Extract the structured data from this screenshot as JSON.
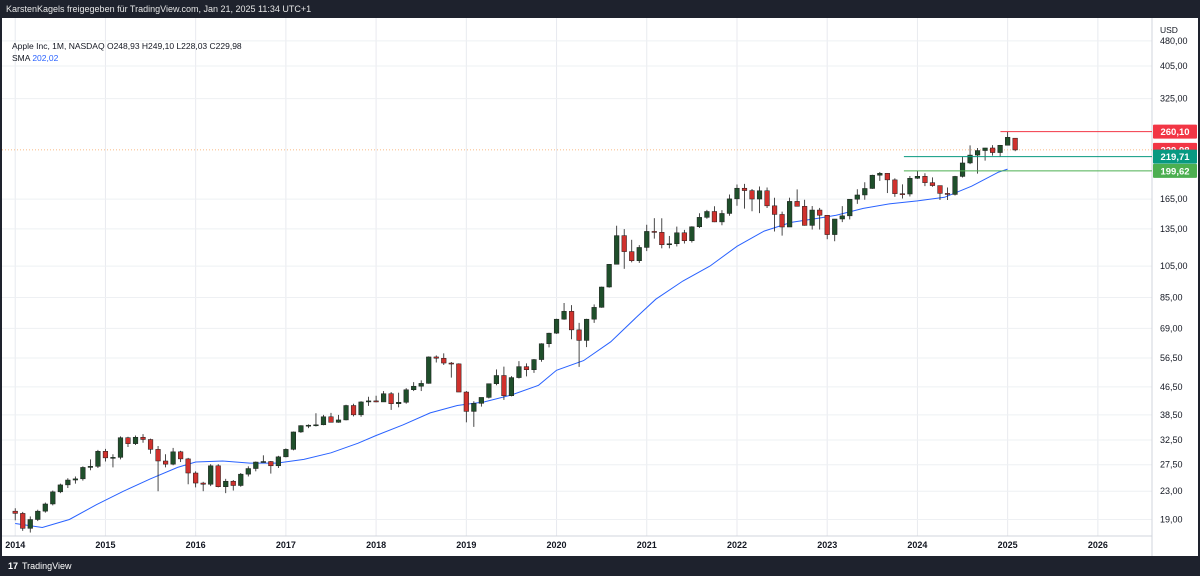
{
  "header": {
    "attribution": "KarstenKagels freigegeben für TradingView.com, Jan 21, 2025 11:34 UTC+1"
  },
  "legend": {
    "symbol_line": "Apple Inc, 1M, NASDAQ  O248,93  H249,10  L228,03  C229,98",
    "sma_label": "SMA",
    "sma_value": "202,02"
  },
  "footer": {
    "logo_glyph": "17",
    "brand": "TradingView"
  },
  "chart_data": {
    "type": "candlestick",
    "currency": "USD",
    "y_scale": "log",
    "ylim": [
      17,
      560
    ],
    "xlim": [
      2013.92,
      2026.6
    ],
    "y_ticks": [
      19,
      23,
      27.5,
      32.5,
      38.5,
      46.5,
      56.5,
      69,
      85,
      105,
      135,
      165,
      325,
      405,
      480
    ],
    "y_tick_labels": [
      "19,00",
      "23,00",
      "27,50",
      "32,50",
      "38,50",
      "46,50",
      "56,50",
      "69,00",
      "85,00",
      "105,00",
      "135,00",
      "165,00",
      "325,00",
      "405,00",
      "480,00"
    ],
    "x_ticks": [
      2014,
      2015,
      2016,
      2017,
      2018,
      2019,
      2020,
      2021,
      2022,
      2023,
      2024,
      2025,
      2026
    ],
    "x_tick_labels": [
      "2014",
      "2015",
      "2016",
      "2017",
      "2018",
      "2019",
      "2020",
      "2021",
      "2022",
      "2023",
      "2024",
      "2025",
      "2026"
    ],
    "price_badges": [
      {
        "label": "260,10",
        "value": 260.1,
        "color": "#f23645"
      },
      {
        "label": "229,98",
        "value": 229.98,
        "color": "#f23645"
      },
      {
        "label": "219,71",
        "value": 219.71,
        "color": "#089981"
      },
      {
        "label": "199,62",
        "value": 199.62,
        "color": "#4caf50"
      }
    ],
    "current_price": 229.98,
    "candles": [
      [
        20.1,
        20.5,
        18.9,
        19.8
      ],
      [
        19.8,
        20.0,
        17.6,
        17.9
      ],
      [
        17.9,
        19.4,
        17.4,
        19.0
      ],
      [
        19.0,
        20.3,
        18.8,
        20.1
      ],
      [
        20.1,
        21.3,
        19.9,
        21.1
      ],
      [
        21.1,
        23.1,
        20.9,
        22.9
      ],
      [
        22.9,
        24.2,
        22.7,
        24.0
      ],
      [
        24.0,
        25.1,
        23.5,
        24.8
      ],
      [
        24.8,
        25.4,
        24.2,
        25.0
      ],
      [
        25.0,
        27.2,
        24.7,
        27.0
      ],
      [
        27.0,
        28.5,
        26.5,
        27.2
      ],
      [
        27.2,
        30.4,
        26.9,
        30.1
      ],
      [
        30.1,
        30.6,
        28.1,
        28.8
      ],
      [
        28.8,
        29.5,
        27.0,
        28.9
      ],
      [
        28.9,
        33.3,
        28.5,
        33.0
      ],
      [
        33.0,
        33.2,
        31.0,
        31.7
      ],
      [
        31.7,
        33.5,
        31.4,
        33.1
      ],
      [
        33.1,
        33.8,
        31.9,
        32.6
      ],
      [
        32.6,
        32.8,
        29.6,
        30.5
      ],
      [
        30.5,
        31.2,
        23.0,
        28.2
      ],
      [
        28.2,
        29.5,
        27.0,
        27.6
      ],
      [
        27.6,
        30.8,
        27.4,
        30.0
      ],
      [
        30.0,
        30.2,
        28.0,
        28.6
      ],
      [
        28.6,
        28.8,
        24.1,
        26.0
      ],
      [
        26.0,
        26.3,
        23.6,
        24.3
      ],
      [
        24.3,
        24.5,
        23.0,
        24.1
      ],
      [
        24.1,
        27.6,
        23.8,
        27.3
      ],
      [
        27.3,
        27.6,
        23.6,
        23.7
      ],
      [
        23.7,
        25.0,
        22.7,
        24.6
      ],
      [
        24.6,
        24.8,
        23.1,
        23.9
      ],
      [
        23.9,
        26.0,
        23.7,
        25.8
      ],
      [
        25.8,
        27.2,
        25.4,
        26.8
      ],
      [
        26.8,
        28.1,
        26.3,
        28.0
      ],
      [
        28.0,
        29.3,
        27.9,
        28.1
      ],
      [
        28.1,
        28.2,
        25.9,
        27.3
      ],
      [
        27.3,
        29.2,
        26.9,
        29.0
      ],
      [
        29.0,
        30.7,
        28.9,
        30.5
      ],
      [
        30.5,
        34.4,
        30.3,
        34.3
      ],
      [
        34.3,
        35.9,
        34.1,
        35.8
      ],
      [
        35.8,
        36.1,
        35.2,
        35.9
      ],
      [
        35.9,
        38.9,
        35.6,
        36.0
      ],
      [
        36.0,
        38.5,
        35.9,
        38.0
      ],
      [
        38.0,
        39.0,
        36.6,
        36.6
      ],
      [
        36.6,
        38.5,
        36.5,
        37.2
      ],
      [
        37.2,
        41.2,
        37.1,
        41.0
      ],
      [
        41.0,
        41.5,
        38.1,
        38.5
      ],
      [
        38.5,
        42.2,
        38.0,
        42.0
      ],
      [
        42.0,
        43.5,
        40.9,
        42.3
      ],
      [
        42.3,
        43.8,
        41.9,
        42.0
      ],
      [
        42.0,
        45.2,
        42.0,
        44.4
      ],
      [
        44.4,
        44.9,
        39.8,
        41.5
      ],
      [
        41.5,
        44.7,
        40.5,
        41.9
      ],
      [
        41.9,
        46.1,
        41.5,
        45.6
      ],
      [
        45.6,
        48.0,
        45.2,
        46.7
      ],
      [
        46.7,
        48.6,
        45.2,
        47.6
      ],
      [
        47.6,
        57.1,
        47.5,
        56.9
      ],
      [
        56.9,
        57.5,
        54.8,
        56.4
      ],
      [
        56.4,
        58.3,
        53.9,
        54.6
      ],
      [
        54.6,
        55.0,
        49.5,
        54.3
      ],
      [
        54.3,
        54.5,
        44.9,
        44.9
      ],
      [
        44.9,
        45.2,
        36.6,
        39.4
      ],
      [
        39.4,
        42.2,
        35.5,
        41.6
      ],
      [
        41.6,
        43.0,
        40.7,
        43.3
      ],
      [
        43.3,
        47.5,
        43.0,
        47.5
      ],
      [
        47.5,
        52.3,
        47.0,
        50.2
      ],
      [
        50.2,
        53.3,
        42.6,
        43.8
      ],
      [
        43.8,
        50.0,
        43.6,
        49.5
      ],
      [
        49.5,
        55.3,
        49.2,
        53.3
      ],
      [
        53.3,
        54.5,
        49.9,
        52.2
      ],
      [
        52.2,
        56.1,
        51.1,
        55.9
      ],
      [
        55.9,
        62.4,
        55.1,
        62.2
      ],
      [
        62.2,
        67.0,
        60.7,
        66.8
      ],
      [
        66.8,
        73.6,
        66.5,
        73.4
      ],
      [
        73.4,
        81.9,
        73.1,
        77.4
      ],
      [
        77.4,
        80.7,
        64.1,
        68.3
      ],
      [
        68.3,
        71.6,
        53.2,
        63.6
      ],
      [
        63.6,
        73.6,
        60.8,
        73.4
      ],
      [
        73.4,
        81.1,
        71.6,
        79.5
      ],
      [
        79.5,
        91.4,
        79.3,
        91.2
      ],
      [
        91.2,
        106.4,
        90.8,
        106.3
      ],
      [
        106.3,
        137.9,
        107.9,
        129.0
      ],
      [
        129.0,
        134.8,
        103.1,
        115.8
      ],
      [
        115.8,
        125.4,
        107.7,
        108.9
      ],
      [
        108.9,
        121.0,
        107.3,
        119.1
      ],
      [
        119.1,
        138.8,
        116.2,
        132.7
      ],
      [
        132.7,
        145.1,
        126.4,
        131.9
      ],
      [
        131.9,
        145.0,
        118.4,
        121.3
      ],
      [
        121.3,
        128.7,
        118.4,
        122.1
      ],
      [
        122.1,
        137.1,
        119.9,
        131.5
      ],
      [
        131.5,
        134.1,
        122.3,
        124.6
      ],
      [
        124.6,
        137.4,
        123.1,
        136.9
      ],
      [
        136.9,
        150.0,
        135.8,
        145.9
      ],
      [
        145.9,
        153.5,
        144.5,
        151.8
      ],
      [
        151.8,
        157.3,
        141.3,
        141.5
      ],
      [
        141.5,
        153.2,
        138.3,
        149.8
      ],
      [
        149.8,
        170.3,
        147.5,
        165.3
      ],
      [
        165.3,
        182.1,
        157.8,
        177.6
      ],
      [
        177.6,
        182.9,
        154.7,
        174.8
      ],
      [
        174.8,
        176.6,
        152.0,
        165.1
      ],
      [
        165.1,
        179.6,
        150.1,
        174.6
      ],
      [
        174.6,
        178.5,
        155.4,
        157.7
      ],
      [
        157.7,
        166.5,
        132.6,
        148.8
      ],
      [
        148.8,
        151.7,
        129.0,
        136.7
      ],
      [
        136.7,
        166.6,
        138.2,
        162.5
      ],
      [
        162.5,
        176.2,
        157.1,
        157.2
      ],
      [
        157.2,
        164.3,
        138.0,
        138.2
      ],
      [
        138.2,
        157.5,
        134.4,
        153.3
      ],
      [
        153.3,
        155.5,
        134.4,
        148.0
      ],
      [
        148.0,
        148.1,
        125.9,
        129.9
      ],
      [
        129.9,
        144.3,
        124.2,
        144.3
      ],
      [
        144.3,
        157.4,
        141.3,
        147.4
      ],
      [
        147.4,
        165.0,
        143.9,
        164.9
      ],
      [
        164.9,
        176.4,
        159.8,
        169.7
      ],
      [
        169.7,
        184.9,
        164.3,
        177.3
      ],
      [
        177.3,
        194.5,
        176.9,
        193.9
      ],
      [
        193.9,
        198.2,
        186.6,
        196.4
      ],
      [
        196.4,
        196.7,
        171.9,
        187.9
      ],
      [
        187.9,
        189.9,
        167.6,
        171.2
      ],
      [
        171.2,
        182.3,
        165.7,
        170.8
      ],
      [
        170.8,
        192.9,
        167.9,
        189.9
      ],
      [
        189.9,
        199.6,
        189.2,
        192.5
      ],
      [
        192.5,
        196.4,
        180.2,
        184.4
      ],
      [
        184.4,
        191.1,
        179.3,
        180.8
      ],
      [
        180.8,
        180.5,
        164.1,
        171.5
      ],
      [
        171.5,
        178.4,
        164.1,
        170.3
      ],
      [
        170.3,
        193.0,
        169.1,
        192.3
      ],
      [
        192.3,
        220.2,
        191.0,
        210.6
      ],
      [
        210.6,
        237.2,
        209.0,
        222.1
      ],
      [
        222.1,
        232.9,
        196.0,
        229.0
      ],
      [
        229.0,
        233.1,
        213.9,
        233.0
      ],
      [
        233.0,
        237.5,
        221.3,
        225.9
      ],
      [
        225.9,
        237.8,
        219.7,
        237.3
      ],
      [
        237.3,
        260.1,
        237.2,
        250.4
      ],
      [
        248.93,
        249.1,
        228.03,
        229.98
      ]
    ],
    "sma": [
      [
        2014.0,
        18.5
      ],
      [
        2014.3,
        18.0
      ],
      [
        2014.6,
        19.0
      ],
      [
        2014.9,
        21.0
      ],
      [
        2015.2,
        23.0
      ],
      [
        2015.5,
        25.0
      ],
      [
        2015.8,
        27.0
      ],
      [
        2016.0,
        28.0
      ],
      [
        2016.3,
        28.2
      ],
      [
        2016.6,
        27.8
      ],
      [
        2016.9,
        27.8
      ],
      [
        2017.2,
        28.5
      ],
      [
        2017.5,
        29.8
      ],
      [
        2017.8,
        31.8
      ],
      [
        2018.0,
        33.5
      ],
      [
        2018.3,
        36.0
      ],
      [
        2018.6,
        39.0
      ],
      [
        2018.9,
        41.0
      ],
      [
        2019.2,
        42.0
      ],
      [
        2019.5,
        44.0
      ],
      [
        2019.8,
        47.0
      ],
      [
        2020.0,
        52.0
      ],
      [
        2020.3,
        55.5
      ],
      [
        2020.6,
        63.0
      ],
      [
        2020.9,
        75.0
      ],
      [
        2021.1,
        84.0
      ],
      [
        2021.4,
        95.0
      ],
      [
        2021.7,
        105.0
      ],
      [
        2022.0,
        120.0
      ],
      [
        2022.3,
        133.0
      ],
      [
        2022.6,
        141.0
      ],
      [
        2022.9,
        145.0
      ],
      [
        2023.1,
        148.0
      ],
      [
        2023.4,
        155.0
      ],
      [
        2023.7,
        160.0
      ],
      [
        2024.0,
        163.0
      ],
      [
        2024.3,
        167.0
      ],
      [
        2024.6,
        180.0
      ],
      [
        2024.9,
        198.0
      ],
      [
        2025.0,
        202.0
      ]
    ],
    "sma_color": "#2962ff"
  }
}
